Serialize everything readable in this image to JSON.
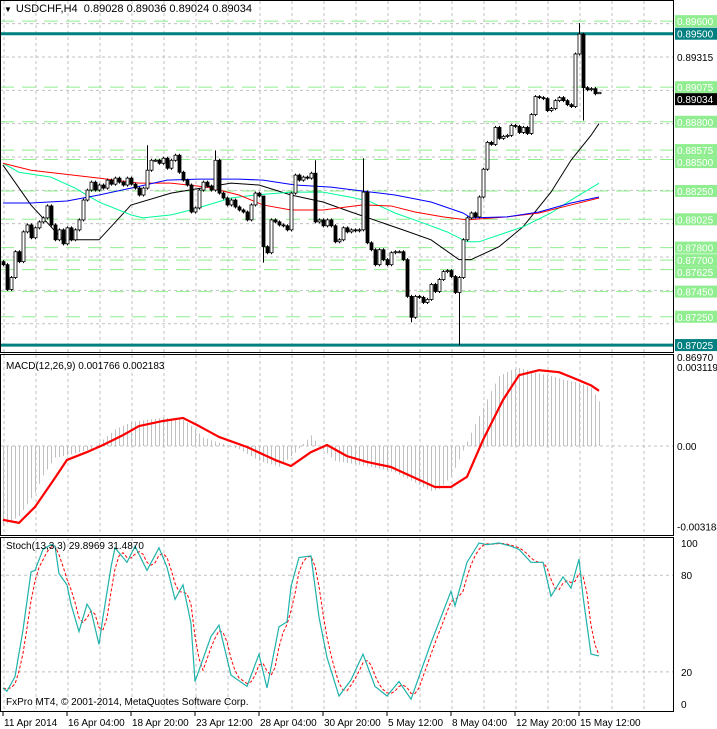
{
  "header": {
    "symbol": "USDCHF,H4",
    "ohlc": "0.89028 0.89036 0.89024 0.89034",
    "menu_icon": "triangle-down-icon"
  },
  "macd_label": "MACD(12,26,9) 0.001766 0.002183",
  "stoch_label": "Stoch(13,3,3) 29.8969 31.4870",
  "copyright": "FxPro MT4, © 2001-2014, MetaQuotes Software Corp.",
  "colors": {
    "bull": "#ffffff",
    "bear": "#000000",
    "level": "#90ee90",
    "key_level": "#008080",
    "grid": "#c0c0c0",
    "ma_fast": "#000000",
    "ma_green": "#00fa9a",
    "ma_red": "#ff0000",
    "ma_blue": "#0000ff",
    "macd_hist": "#c0c0c0",
    "macd_signal": "#ff0000",
    "stoch_k": "#20b2aa",
    "stoch_d": "#ff0000"
  },
  "time_axis": {
    "labels": [
      "11 Apr 2014",
      "16 Apr 04:00",
      "18 Apr 20:00",
      "23 Apr 12:00",
      "28 Apr 04:00",
      "30 Apr 20:00",
      "5 May 12:00",
      "8 May 04:00",
      "12 May 20:00",
      "15 May 12:00"
    ],
    "label_bars": [
      0,
      16,
      32,
      48,
      64,
      80,
      96,
      112,
      128,
      144
    ]
  },
  "chart_data": [
    {
      "type": "candlestick",
      "symbol": "USDCHF",
      "timeframe": "H4",
      "ylim": [
        0.8697,
        0.8976
      ],
      "axis_labels": [
        "0.89315",
        "0.86970"
      ],
      "current_price": "0.89034",
      "levels": [
        "0.89600",
        "0.89075",
        "0.88800",
        "0.88575",
        "0.88500",
        "0.88250",
        "0.88025",
        "0.87800",
        "0.87700",
        "0.87625",
        "0.87450",
        "0.87250"
      ],
      "key_levels": [
        "0.89500",
        "0.87025"
      ],
      "first_open": 0.87688,
      "close": [
        0.87664,
        0.87467,
        0.87562,
        0.87767,
        0.87688,
        0.87925,
        0.8798,
        0.87878,
        0.87957,
        0.88004,
        0.88036,
        0.88131,
        0.8798,
        0.87862,
        0.87941,
        0.8783,
        0.87957,
        0.87862,
        0.87941,
        0.8802,
        0.88178,
        0.88257,
        0.8832,
        0.88257,
        0.88297,
        0.88273,
        0.88336,
        0.88304,
        0.88352,
        0.8832,
        0.88297,
        0.88352,
        0.88304,
        0.88273,
        0.88218,
        0.88273,
        0.88415,
        0.88494,
        0.88494,
        0.8847,
        0.8851,
        0.88431,
        0.88494,
        0.88534,
        0.88399,
        0.88336,
        0.88297,
        0.88083,
        0.88115,
        0.88257,
        0.8832,
        0.88289,
        0.88257,
        0.88494,
        0.88233,
        0.88194,
        0.88139,
        0.88178,
        0.88123,
        0.88099,
        0.88083,
        0.8802,
        0.88139,
        0.88233,
        0.8821,
        0.87807,
        0.87759,
        0.8802,
        0.88004,
        0.8798,
        0.87973,
        0.87941,
        0.88233,
        0.88376,
        0.88336,
        0.8836,
        0.88352,
        0.88391,
        0.88004,
        0.8802,
        0.87973,
        0.8802,
        0.87973,
        0.87846,
        0.87862,
        0.87957,
        0.87925,
        0.87941,
        0.87933,
        0.87941,
        0.88241,
        0.87838,
        0.87783,
        0.87664,
        0.87783,
        0.87704,
        0.87664,
        0.87759,
        0.87767,
        0.87767,
        0.87704,
        0.87412,
        0.87246,
        0.87412,
        0.87404,
        0.87364,
        0.87388,
        0.87507,
        0.87451,
        0.87546,
        0.87609,
        0.87617,
        0.8757,
        0.87443,
        0.87562,
        0.87862,
        0.88036,
        0.88075,
        0.88044,
        0.88202,
        0.88423,
        0.88636,
        0.8862,
        0.88755,
        0.88668,
        0.88684,
        0.88692,
        0.88771,
        0.88763,
        0.88715,
        0.88755,
        0.88707,
        0.88857,
        0.89,
        0.88992,
        0.88984,
        0.88889,
        0.88905,
        0.88968,
        0.88992,
        0.88968,
        0.88936,
        0.88921,
        0.89339,
        0.89497,
        0.89071,
        0.89055,
        0.89063,
        0.89023,
        0.89034
      ],
      "wick_extremes": [
        {
          "bar": 36,
          "high": 0.88613
        },
        {
          "bar": 53,
          "high": 0.88573
        },
        {
          "bar": 65,
          "high": 0.8821,
          "low": 0.8768
        },
        {
          "bar": 78,
          "high": 0.88494
        },
        {
          "bar": 90,
          "high": 0.8851
        },
        {
          "bar": 102,
          "low": 0.87206
        },
        {
          "bar": 114,
          "low": 0.87025
        },
        {
          "bar": 144,
          "high": 0.89584
        },
        {
          "bar": 145,
          "low": 0.8881
        },
        {
          "bar": 149,
          "high": 0.89036,
          "low": 0.89024
        }
      ],
      "moving_averages": [
        {
          "color_key": "ma_fast",
          "points": [
            [
              0,
              0.88455
            ],
            [
              7,
              0.88138
            ],
            [
              15,
              0.87862
            ],
            [
              24,
              0.87862
            ],
            [
              32,
              0.88138
            ],
            [
              42,
              0.88233
            ],
            [
              57,
              0.88312
            ],
            [
              64,
              0.88297
            ],
            [
              72,
              0.88218
            ],
            [
              80,
              0.88162
            ],
            [
              87,
              0.88083
            ],
            [
              100,
              0.87941
            ],
            [
              107,
              0.87862
            ],
            [
              114,
              0.87704
            ],
            [
              117,
              0.87704
            ],
            [
              124,
              0.87807
            ],
            [
              130,
              0.87965
            ],
            [
              137,
              0.88241
            ],
            [
              142,
              0.88494
            ],
            [
              147,
              0.88692
            ],
            [
              149,
              0.88786
            ]
          ]
        },
        {
          "color_key": "ma_green",
          "points": [
            [
              0,
              0.8847
            ],
            [
              4,
              0.88399
            ],
            [
              12,
              0.8836
            ],
            [
              18,
              0.88273
            ],
            [
              24,
              0.88162
            ],
            [
              32,
              0.8806
            ],
            [
              35,
              0.88036
            ],
            [
              42,
              0.8806
            ],
            [
              47,
              0.88099
            ],
            [
              57,
              0.88194
            ],
            [
              63,
              0.88218
            ],
            [
              72,
              0.88241
            ],
            [
              80,
              0.88241
            ],
            [
              88,
              0.88194
            ],
            [
              92,
              0.88162
            ],
            [
              98,
              0.88075
            ],
            [
              105,
              0.87996
            ],
            [
              111,
              0.87925
            ],
            [
              116,
              0.87846
            ],
            [
              119,
              0.87846
            ],
            [
              130,
              0.87965
            ],
            [
              137,
              0.88075
            ],
            [
              142,
              0.88178
            ],
            [
              149,
              0.88312
            ]
          ]
        },
        {
          "color_key": "ma_red",
          "points": [
            [
              0,
              0.8847
            ],
            [
              7,
              0.88415
            ],
            [
              24,
              0.88352
            ],
            [
              34,
              0.88312
            ],
            [
              42,
              0.88312
            ],
            [
              51,
              0.88281
            ],
            [
              59,
              0.88218
            ],
            [
              65,
              0.88139
            ],
            [
              72,
              0.88099
            ],
            [
              80,
              0.88099
            ],
            [
              90,
              0.88139
            ],
            [
              97,
              0.88131
            ],
            [
              103,
              0.88083
            ],
            [
              110,
              0.88044
            ],
            [
              116,
              0.8802
            ],
            [
              126,
              0.88044
            ],
            [
              134,
              0.88075
            ],
            [
              142,
              0.88139
            ],
            [
              149,
              0.88194
            ]
          ]
        },
        {
          "color_key": "ma_blue",
          "points": [
            [
              0,
              0.88154
            ],
            [
              7,
              0.88154
            ],
            [
              16,
              0.8817
            ],
            [
              24,
              0.88218
            ],
            [
              32,
              0.88273
            ],
            [
              41,
              0.88336
            ],
            [
              49,
              0.88344
            ],
            [
              59,
              0.88344
            ],
            [
              65,
              0.88336
            ],
            [
              73,
              0.88297
            ],
            [
              82,
              0.88281
            ],
            [
              90,
              0.88249
            ],
            [
              98,
              0.88218
            ],
            [
              107,
              0.88162
            ],
            [
              115,
              0.88075
            ],
            [
              117,
              0.88036
            ],
            [
              126,
              0.88044
            ],
            [
              134,
              0.88083
            ],
            [
              142,
              0.88154
            ],
            [
              149,
              0.88202
            ]
          ]
        }
      ]
    },
    {
      "type": "bar+line",
      "indicator": "MACD(12,26,9)",
      "ylim": [
        -0.00352,
        0.0036
      ],
      "axis_labels": [
        "0.003119",
        "0.00",
        "-0.003184"
      ],
      "main_points": [
        [
          0,
          -0.00316
        ],
        [
          4,
          -0.00277
        ],
        [
          8,
          -0.00184
        ],
        [
          10,
          -0.00116
        ],
        [
          13,
          -0.00046
        ],
        [
          17,
          -0.00033
        ],
        [
          22,
          -0.00013
        ],
        [
          25,
          0.00026
        ],
        [
          28,
          0.00066
        ],
        [
          32,
          0.00095
        ],
        [
          40,
          0.00112
        ],
        [
          45,
          0.00105
        ],
        [
          48,
          0.00066
        ],
        [
          50,
          0.00033
        ],
        [
          54,
          0.00013
        ],
        [
          59,
          -0.00013
        ],
        [
          64,
          -0.00059
        ],
        [
          69,
          -0.00082
        ],
        [
          73,
          -0.00026
        ],
        [
          77,
          0.00042
        ],
        [
          79,
          0
        ],
        [
          83,
          -0.00059
        ],
        [
          88,
          -0.00072
        ],
        [
          93,
          -0.00086
        ],
        [
          98,
          -0.00105
        ],
        [
          103,
          -0.00145
        ],
        [
          107,
          -0.00178
        ],
        [
          109,
          -0.00171
        ],
        [
          112,
          -0.00119
        ],
        [
          114,
          -0.00053
        ],
        [
          117,
          0.00053
        ],
        [
          119,
          0.00119
        ],
        [
          122,
          0.00217
        ],
        [
          124,
          0.00277
        ],
        [
          127,
          0.003
        ],
        [
          129,
          0.00309
        ],
        [
          133,
          0.0029
        ],
        [
          137,
          0.00277
        ],
        [
          140,
          0.00263
        ],
        [
          144,
          0.0025
        ],
        [
          147,
          0.0023
        ],
        [
          149,
          0.001766
        ]
      ],
      "signal_points": [
        [
          0,
          -0.00292
        ],
        [
          4,
          -0.00304
        ],
        [
          8,
          -0.00241
        ],
        [
          13,
          -0.00126
        ],
        [
          16,
          -0.00055
        ],
        [
          21,
          -0.00024
        ],
        [
          25,
          4e-05
        ],
        [
          30,
          0.00043
        ],
        [
          34,
          0.00079
        ],
        [
          40,
          0.00099
        ],
        [
          45,
          0.00111
        ],
        [
          49,
          0.00079
        ],
        [
          54,
          0.00036
        ],
        [
          61,
          -4e-05
        ],
        [
          68,
          -0.00055
        ],
        [
          72,
          -0.00079
        ],
        [
          77,
          -0.00024
        ],
        [
          81,
          4e-05
        ],
        [
          86,
          -0.0004
        ],
        [
          91,
          -0.00063
        ],
        [
          97,
          -0.00083
        ],
        [
          102,
          -0.00119
        ],
        [
          108,
          -0.00162
        ],
        [
          112,
          -0.00162
        ],
        [
          116,
          -0.00122
        ],
        [
          120,
          0.00024
        ],
        [
          125,
          0.00182
        ],
        [
          129,
          0.0028
        ],
        [
          134,
          0.003
        ],
        [
          139,
          0.00292
        ],
        [
          142,
          0.00273
        ],
        [
          147,
          0.0024
        ],
        [
          149,
          0.002183
        ]
      ]
    },
    {
      "type": "line",
      "indicator": "Stoch(13,3,3)",
      "ylim": [
        -4.3,
        103.1
      ],
      "axis_labels": [
        "100",
        "80",
        "20",
        "0"
      ],
      "k_points": [
        [
          0,
          10
        ],
        [
          1,
          8
        ],
        [
          3,
          17
        ],
        [
          5,
          46
        ],
        [
          7,
          82
        ],
        [
          8,
          83
        ],
        [
          10,
          96
        ],
        [
          12,
          99
        ],
        [
          13,
          98
        ],
        [
          14,
          81
        ],
        [
          16,
          74
        ],
        [
          17,
          62
        ],
        [
          19,
          45
        ],
        [
          21,
          62
        ],
        [
          22,
          58
        ],
        [
          24,
          37
        ],
        [
          25,
          54
        ],
        [
          27,
          85
        ],
        [
          28,
          97
        ],
        [
          31,
          88
        ],
        [
          33,
          98
        ],
        [
          36,
          83
        ],
        [
          39,
          97
        ],
        [
          41,
          85
        ],
        [
          43,
          65
        ],
        [
          45,
          74
        ],
        [
          47,
          50
        ],
        [
          48,
          14
        ],
        [
          52,
          42
        ],
        [
          54,
          49
        ],
        [
          57,
          18
        ],
        [
          61,
          11
        ],
        [
          64,
          31
        ],
        [
          66,
          10
        ],
        [
          69,
          48
        ],
        [
          71,
          51
        ],
        [
          72,
          73
        ],
        [
          74,
          91
        ],
        [
          77,
          92
        ],
        [
          79,
          54
        ],
        [
          81,
          29
        ],
        [
          84,
          5
        ],
        [
          87,
          15
        ],
        [
          90,
          31
        ],
        [
          93,
          11
        ],
        [
          96,
          5
        ],
        [
          99,
          14
        ],
        [
          102,
          3
        ],
        [
          104,
          17
        ],
        [
          107,
          38
        ],
        [
          112,
          70
        ],
        [
          113,
          61
        ],
        [
          116,
          88
        ],
        [
          119,
          100
        ],
        [
          121,
          99
        ],
        [
          124,
          100
        ],
        [
          127,
          98
        ],
        [
          129,
          96
        ],
        [
          132,
          88
        ],
        [
          135,
          88
        ],
        [
          137,
          67
        ],
        [
          140,
          79
        ],
        [
          142,
          72
        ],
        [
          144,
          90
        ],
        [
          145,
          67
        ],
        [
          147,
          31
        ],
        [
          149,
          29.8969
        ]
      ]
    }
  ]
}
